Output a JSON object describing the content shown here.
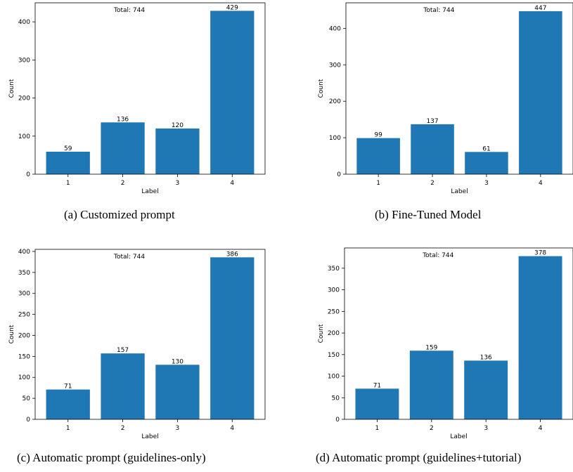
{
  "colors": {
    "bar": "#1f77b4",
    "axis": "#000000",
    "text": "#000000"
  },
  "chart_data": [
    {
      "type": "bar",
      "caption": "(a)  Customized prompt",
      "annotation": "Total: 744",
      "categories": [
        "1",
        "2",
        "3",
        "4"
      ],
      "values": [
        59,
        136,
        120,
        429
      ],
      "xlabel": "Label",
      "ylabel": "Count",
      "ylim": [
        0,
        450
      ],
      "yticks": [
        0,
        100,
        200,
        300,
        400
      ],
      "grid": false
    },
    {
      "type": "bar",
      "caption": "(b)  Fine-Tuned Model",
      "annotation": "Total: 744",
      "categories": [
        "1",
        "2",
        "3",
        "4"
      ],
      "values": [
        99,
        137,
        61,
        447
      ],
      "xlabel": "Label",
      "ylabel": "Count",
      "ylim": [
        0,
        470
      ],
      "yticks": [
        0,
        100,
        200,
        300,
        400
      ],
      "grid": false
    },
    {
      "type": "bar",
      "caption": "(c)  Automatic prompt (guidelines-only)",
      "annotation": "Total: 744",
      "categories": [
        "1",
        "2",
        "3",
        "4"
      ],
      "values": [
        71,
        157,
        130,
        386
      ],
      "xlabel": "Label",
      "ylabel": "Count",
      "ylim": [
        0,
        405
      ],
      "yticks": [
        0,
        50,
        100,
        150,
        200,
        250,
        300,
        350,
        400
      ],
      "grid": false
    },
    {
      "type": "bar",
      "caption": "(d)  Automatic prompt (guidelines+tutorial)",
      "annotation": "Total: 744",
      "categories": [
        "1",
        "2",
        "3",
        "4"
      ],
      "values": [
        71,
        159,
        136,
        378
      ],
      "xlabel": "Label",
      "ylabel": "Count",
      "ylim": [
        0,
        397
      ],
      "yticks": [
        0,
        50,
        100,
        150,
        200,
        250,
        300,
        350
      ],
      "grid": false
    }
  ]
}
